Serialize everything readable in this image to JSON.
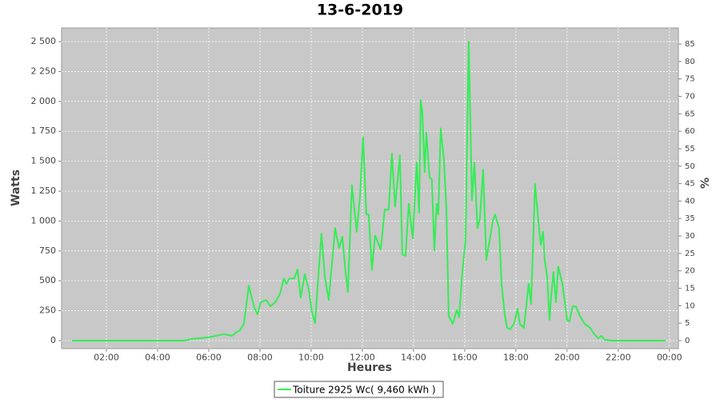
{
  "chart_data": {
    "type": "line",
    "title": "13-6-2019",
    "x_label": "Heures",
    "y_label": "Watts",
    "y2_label": "%",
    "grid": true,
    "xlim": [
      0.25,
      24.35
    ],
    "xticks": [
      {
        "value": 2,
        "label": "02:00"
      },
      {
        "value": 4,
        "label": "04:00"
      },
      {
        "value": 6,
        "label": "06:00"
      },
      {
        "value": 8,
        "label": "08:00"
      },
      {
        "value": 10,
        "label": "10:00"
      },
      {
        "value": 12,
        "label": "12:00"
      },
      {
        "value": 14,
        "label": "14:00"
      },
      {
        "value": 16,
        "label": "16:00"
      },
      {
        "value": 18,
        "label": "18:00"
      },
      {
        "value": 20,
        "label": "20:00"
      },
      {
        "value": 22,
        "label": "22:00"
      },
      {
        "value": 24,
        "label": "00:00"
      }
    ],
    "ylim": [
      -67,
      2614
    ],
    "yticks": [
      0,
      250,
      500,
      750,
      {
        "value": 1000,
        "label": "1 000"
      },
      {
        "value": 1250,
        "label": "1 250"
      },
      {
        "value": 1500,
        "label": "1 500"
      },
      {
        "value": 1750,
        "label": "1 750"
      },
      {
        "value": 2000,
        "label": "2 000"
      },
      {
        "value": 2250,
        "label": "2 250"
      },
      {
        "value": 2500,
        "label": "2 500"
      }
    ],
    "y2lim": [
      -2.3,
      89.6
    ],
    "y2ticks": [
      0,
      5,
      10,
      15,
      20,
      25,
      30,
      35,
      40,
      45,
      50,
      55,
      60,
      65,
      70,
      75,
      80,
      85
    ],
    "series": [
      {
        "name": "Toiture 2925 Wc( 9,460 kWh )",
        "color": "#33ee55",
        "x": [
          0.656,
          5.031,
          5.344,
          6.0,
          6.594,
          6.906,
          7.094,
          7.219,
          7.375,
          7.563,
          7.781,
          7.906,
          8.031,
          8.25,
          8.406,
          8.594,
          8.781,
          8.938,
          9.031,
          9.156,
          9.344,
          9.469,
          9.594,
          9.75,
          9.906,
          10.031,
          10.156,
          10.281,
          10.406,
          10.531,
          10.688,
          10.813,
          10.938,
          11.094,
          11.219,
          11.344,
          11.438,
          11.594,
          11.781,
          11.906,
          12.031,
          12.156,
          12.25,
          12.375,
          12.5,
          12.719,
          12.875,
          13.031,
          13.156,
          13.281,
          13.469,
          13.563,
          13.688,
          13.813,
          13.969,
          14.125,
          14.219,
          14.281,
          14.344,
          14.438,
          14.5,
          14.625,
          14.719,
          14.813,
          14.906,
          14.969,
          15.063,
          15.188,
          15.281,
          15.375,
          15.531,
          15.688,
          15.781,
          15.906,
          16.031,
          16.156,
          16.281,
          16.375,
          16.5,
          16.594,
          16.719,
          16.844,
          17.0,
          17.094,
          17.188,
          17.344,
          17.438,
          17.563,
          17.656,
          17.781,
          17.938,
          18.063,
          18.156,
          18.313,
          18.5,
          18.594,
          18.75,
          18.875,
          18.969,
          19.063,
          19.125,
          19.219,
          19.313,
          19.375,
          19.469,
          19.563,
          19.656,
          19.813,
          19.906,
          20.0,
          20.094,
          20.219,
          20.344,
          20.5,
          20.688,
          20.906,
          21.063,
          21.219,
          21.344,
          21.469,
          21.75,
          23.844
        ],
        "values": [
          0,
          0,
          14,
          27,
          55,
          40,
          73,
          87,
          140,
          460,
          274,
          220,
          320,
          340,
          287,
          320,
          390,
          520,
          475,
          520,
          520,
          595,
          360,
          555,
          428,
          240,
          147,
          540,
          895,
          540,
          340,
          640,
          940,
          775,
          870,
          575,
          408,
          1300,
          910,
          1195,
          1700,
          1055,
          1055,
          590,
          880,
          760,
          1095,
          1095,
          1565,
          1120,
          1550,
          720,
          710,
          1145,
          855,
          1490,
          1070,
          2010,
          1910,
          1410,
          1740,
          1365,
          1345,
          755,
          1145,
          1055,
          1775,
          1510,
          1110,
          207,
          140,
          255,
          195,
          575,
          840,
          2500,
          1175,
          1490,
          940,
          1020,
          1430,
          675,
          870,
          1000,
          1055,
          940,
          475,
          220,
          107,
          94,
          147,
          267,
          140,
          107,
          475,
          307,
          1310,
          1010,
          802,
          910,
          675,
          540,
          174,
          360,
          575,
          320,
          620,
          475,
          334,
          174,
          160,
          287,
          287,
          207,
          140,
          107,
          55,
          20,
          40,
          7,
          0,
          0
        ]
      }
    ]
  }
}
